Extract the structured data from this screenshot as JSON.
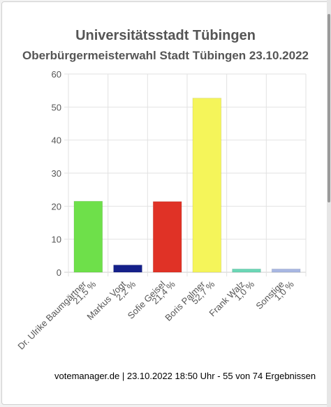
{
  "header": {
    "title": "Universitätsstadt Tübingen",
    "subtitle": "Oberbürgermeisterwahl Stadt Tübingen 23.10.2022"
  },
  "footer": {
    "source": "votemanager.de | 23.10.2022 18:50 Uhr - 55 von 74 Ergebnissen"
  },
  "chart_data": {
    "type": "bar",
    "categories": [
      "Dr. Ulrike Baumgärtner",
      "Markus Vogt",
      "Sofie Geisel",
      "Boris Palmer",
      "Frank Walz",
      "Sonstige"
    ],
    "value_labels": [
      "21,5 %",
      "2,2 %",
      "21,4 %",
      "52,7 %",
      "1,0 %",
      "1,0 %"
    ],
    "values": [
      21.5,
      2.2,
      21.4,
      52.7,
      1.0,
      1.0
    ],
    "colors": [
      "#6ee04a",
      "#15208a",
      "#e03226",
      "#f5f55a",
      "#6bd6b6",
      "#a8b7e2"
    ],
    "ylim": [
      0,
      60
    ],
    "yticks": [
      0,
      10,
      20,
      30,
      40,
      50,
      60
    ],
    "grid": true,
    "title": "Universitätsstadt Tübingen",
    "xlabel": "",
    "ylabel": ""
  }
}
